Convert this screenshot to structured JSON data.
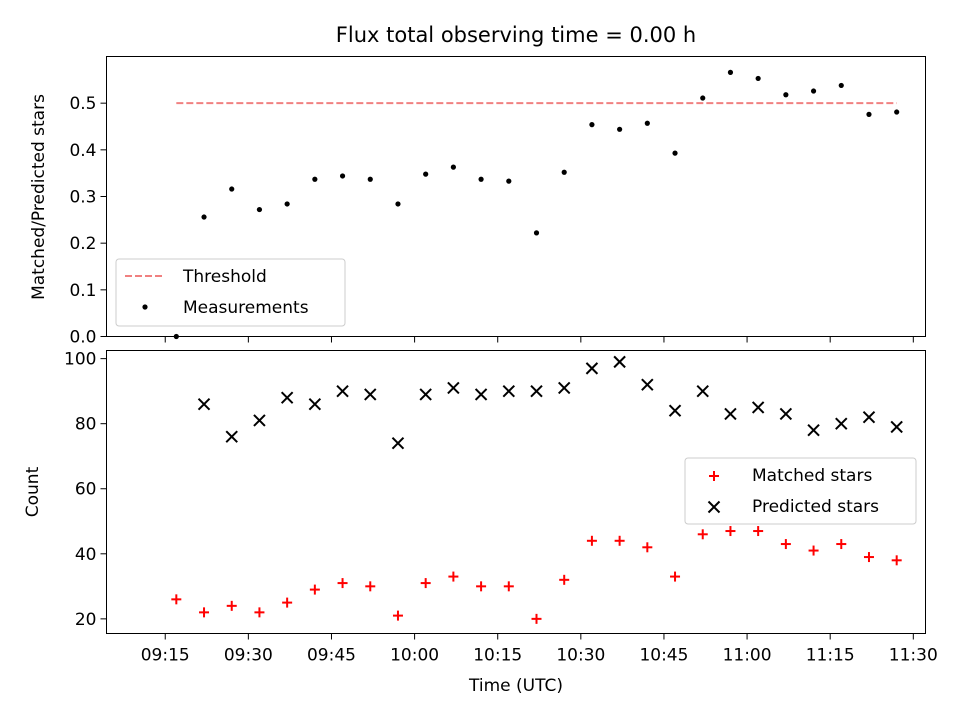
{
  "chart_data": [
    {
      "type": "scatter",
      "title": "Flux total observing time = 0.00 h",
      "xlabel": "",
      "ylabel": "Matched/Predicted stars",
      "ylim": [
        0,
        0.6
      ],
      "yticks": [
        "0.0",
        "0.1",
        "0.2",
        "0.3",
        "0.4",
        "0.5"
      ],
      "grid": false,
      "legend_position": "lower-left",
      "threshold": {
        "name": "Threshold",
        "value": 0.5,
        "x_start": "09:17",
        "x_end": "11:27",
        "color": "#f08080"
      },
      "series": [
        {
          "name": "Measurements",
          "color": "#000000",
          "marker": "dot",
          "x": [
            "09:17",
            "09:22",
            "09:27",
            "09:32",
            "09:37",
            "09:42",
            "09:47",
            "09:52",
            "09:57",
            "10:02",
            "10:07",
            "10:12",
            "10:17",
            "10:22",
            "10:27",
            "10:32",
            "10:37",
            "10:42",
            "10:47",
            "10:52",
            "10:57",
            "11:02",
            "11:07",
            "11:12",
            "11:17",
            "11:22",
            "11:27"
          ],
          "values": [
            0.0,
            0.256,
            0.316,
            0.272,
            0.284,
            0.337,
            0.344,
            0.337,
            0.284,
            0.348,
            0.363,
            0.337,
            0.333,
            0.222,
            0.352,
            0.454,
            0.444,
            0.457,
            0.393,
            0.511,
            0.566,
            0.553,
            0.518,
            0.526,
            0.538,
            0.476,
            0.481
          ]
        }
      ]
    },
    {
      "type": "scatter",
      "title": "",
      "xlabel": "Time (UTC)",
      "ylabel": "Count",
      "ylim": [
        15.5,
        102.5
      ],
      "yticks": [
        "20",
        "40",
        "60",
        "80",
        "100"
      ],
      "xticks": [
        "09:15",
        "09:30",
        "09:45",
        "10:00",
        "10:15",
        "10:30",
        "10:45",
        "11:00",
        "11:15",
        "11:30"
      ],
      "grid": false,
      "legend_position": "center-right",
      "series": [
        {
          "name": "Matched stars",
          "color": "#ff0000",
          "marker": "plus",
          "x": [
            "09:17",
            "09:22",
            "09:27",
            "09:32",
            "09:37",
            "09:42",
            "09:47",
            "09:52",
            "09:57",
            "10:02",
            "10:07",
            "10:12",
            "10:17",
            "10:22",
            "10:27",
            "10:32",
            "10:37",
            "10:42",
            "10:47",
            "10:52",
            "10:57",
            "11:02",
            "11:07",
            "11:12",
            "11:17",
            "11:22",
            "11:27"
          ],
          "values": [
            26,
            22,
            24,
            22,
            25,
            29,
            31,
            30,
            21,
            31,
            33,
            30,
            30,
            20,
            32,
            44,
            44,
            42,
            33,
            46,
            47,
            47,
            43,
            41,
            43,
            39,
            38
          ]
        },
        {
          "name": "Predicted stars",
          "color": "#000000",
          "marker": "x",
          "x": [
            "09:22",
            "09:27",
            "09:32",
            "09:37",
            "09:42",
            "09:47",
            "09:52",
            "09:57",
            "10:02",
            "10:07",
            "10:12",
            "10:17",
            "10:22",
            "10:27",
            "10:32",
            "10:37",
            "10:42",
            "10:47",
            "10:52",
            "10:57",
            "11:02",
            "11:07",
            "11:12",
            "11:17",
            "11:22",
            "11:27"
          ],
          "values": [
            86,
            76,
            81,
            88,
            86,
            90,
            89,
            74,
            89,
            91,
            89,
            90,
            90,
            91,
            97,
            99,
            92,
            84,
            90,
            83,
            85,
            83,
            78,
            80,
            82,
            79
          ]
        }
      ]
    }
  ]
}
